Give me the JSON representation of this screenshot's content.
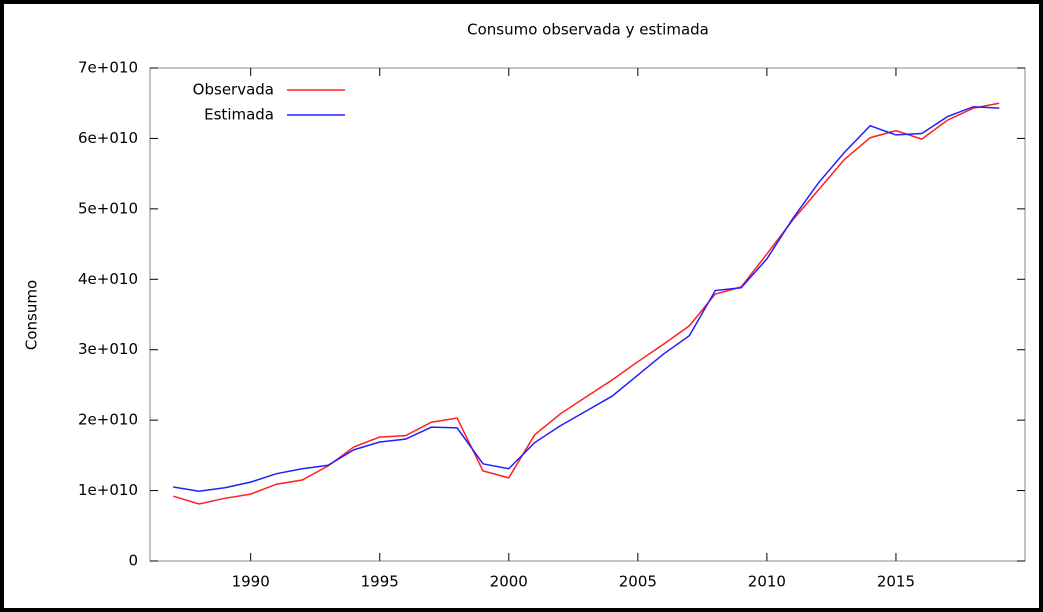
{
  "chart_data": {
    "type": "line",
    "title": "Consumo observada y estimada",
    "ylabel": "Consumo",
    "x": [
      1987,
      1988,
      1989,
      1990,
      1991,
      1992,
      1993,
      1994,
      1995,
      1996,
      1997,
      1998,
      1999,
      2000,
      2001,
      2002,
      2003,
      2004,
      2005,
      2006,
      2007,
      2008,
      2009,
      2010,
      2011,
      2012,
      2013,
      2014,
      2015,
      2016,
      2017,
      2018,
      2019
    ],
    "series": [
      {
        "name": "Observada",
        "color": "#ff2020",
        "values": [
          9200000000.0,
          8100000000.0,
          8900000000.0,
          9500000000.0,
          10900000000.0,
          11500000000.0,
          13500000000.0,
          16200000000.0,
          17600000000.0,
          17800000000.0,
          19700000000.0,
          20300000000.0,
          12800000000.0,
          11800000000.0,
          17900000000.0,
          20900000000.0,
          23300000000.0,
          25700000000.0,
          28300000000.0,
          30800000000.0,
          33400000000.0,
          37900000000.0,
          38900000000.0,
          43600000000.0,
          48400000000.0,
          52700000000.0,
          57000000000.0,
          60100000000.0,
          61100000000.0,
          59900000000.0,
          62600000000.0,
          64300000000.0,
          65000000000.0
        ]
      },
      {
        "name": "Estimada",
        "color": "#2020ff",
        "values": [
          10500000000.0,
          9900000000.0,
          10400000000.0,
          11200000000.0,
          12400000000.0,
          13100000000.0,
          13600000000.0,
          15800000000.0,
          16900000000.0,
          17300000000.0,
          19000000000.0,
          18900000000.0,
          13800000000.0,
          13100000000.0,
          16800000000.0,
          19200000000.0,
          21300000000.0,
          23400000000.0,
          26400000000.0,
          29400000000.0,
          32000000000.0,
          38400000000.0,
          38800000000.0,
          42900000000.0,
          48600000000.0,
          53700000000.0,
          58000000000.0,
          61800000000.0,
          60500000000.0,
          60700000000.0,
          63100000000.0,
          64500000000.0,
          64300000000.0
        ]
      }
    ],
    "xlim": [
      1986.1,
      2020
    ],
    "xticks": [
      1990,
      1995,
      2000,
      2005,
      2010,
      2015
    ],
    "ylim": [
      0,
      70000000000
    ],
    "yticks": [
      0,
      {
        "value": 10000000000,
        "label": "1e+010"
      },
      {
        "value": 20000000000,
        "label": "2e+010"
      },
      {
        "value": 30000000000,
        "label": "3e+010"
      },
      {
        "value": 40000000000,
        "label": "4e+010"
      },
      {
        "value": 50000000000,
        "label": "5e+010"
      },
      {
        "value": 60000000000,
        "label": "6e+010"
      },
      {
        "value": 70000000000,
        "label": "7e+010"
      }
    ],
    "legend": "top-left"
  }
}
